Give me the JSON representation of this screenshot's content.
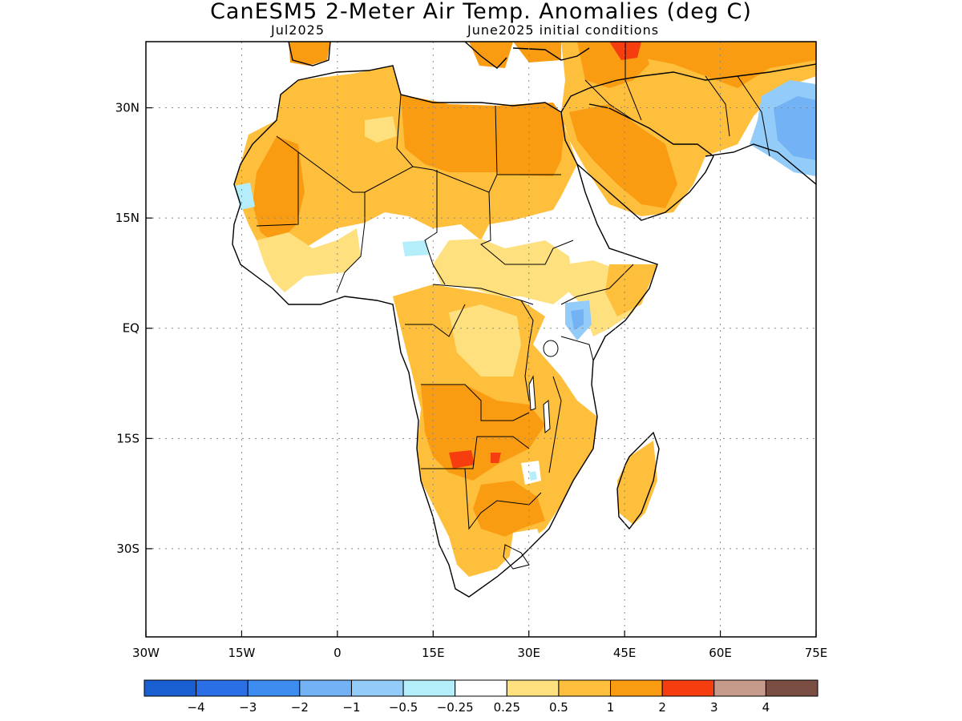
{
  "title": "CanESM5 2-Meter Air Temp. Anomalies (deg C)",
  "subtitle_left": "Jul2025",
  "subtitle_right": "June2025 initial conditions",
  "map": {
    "lon_range": [
      -30,
      75
    ],
    "lat_range": [
      -42,
      39
    ],
    "lon_ticks": [
      {
        "value": -30,
        "label": "30W"
      },
      {
        "value": -15,
        "label": "15W"
      },
      {
        "value": 0,
        "label": "0"
      },
      {
        "value": 15,
        "label": "15E"
      },
      {
        "value": 30,
        "label": "30E"
      },
      {
        "value": 45,
        "label": "45E"
      },
      {
        "value": 60,
        "label": "60E"
      },
      {
        "value": 75,
        "label": "75E"
      }
    ],
    "lat_ticks": [
      {
        "value": 30,
        "label": "30N"
      },
      {
        "value": 15,
        "label": "15N"
      },
      {
        "value": 0,
        "label": "EQ"
      },
      {
        "value": -15,
        "label": "15S"
      },
      {
        "value": -30,
        "label": "30S"
      }
    ],
    "grid": true,
    "colorbar": {
      "colors": [
        "#1a5fd1",
        "#2b6fe6",
        "#3d8cf0",
        "#74b2f6",
        "#93ccf8",
        "#b3eefa",
        "#ffffff",
        "#fee07e",
        "#fdbf3c",
        "#fa9c12",
        "#f53d10",
        "#c79b8c",
        "#7a4e42"
      ],
      "labels": [
        "-4",
        "-3",
        "-2",
        "-1",
        "-0.5",
        "-0.25",
        "0.25",
        "0.5",
        "1",
        "2",
        "3",
        "4"
      ]
    }
  }
}
